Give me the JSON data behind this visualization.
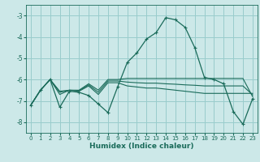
{
  "background_color": "#cce8e8",
  "grid_color": "#99cccc",
  "line_color": "#1a6b5a",
  "x_label": "Humidex (Indice chaleur)",
  "xlim": [
    -0.5,
    23.5
  ],
  "ylim": [
    -8.5,
    -2.5
  ],
  "yticks": [
    -8,
    -7,
    -6,
    -5,
    -4,
    -3
  ],
  "xticks": [
    0,
    1,
    2,
    3,
    4,
    5,
    6,
    7,
    8,
    9,
    10,
    11,
    12,
    13,
    14,
    15,
    16,
    17,
    18,
    19,
    20,
    21,
    22,
    23
  ],
  "series": [
    {
      "x": [
        0,
        1,
        2,
        3,
        4,
        5,
        6,
        7,
        8,
        9,
        10,
        11,
        12,
        13,
        14,
        15,
        16,
        17,
        18,
        19,
        20,
        21,
        22,
        23
      ],
      "y": [
        -7.2,
        -6.5,
        -6.0,
        -6.55,
        -6.5,
        -6.5,
        -6.2,
        -6.5,
        -6.0,
        -6.0,
        -5.95,
        -5.95,
        -5.95,
        -5.95,
        -5.95,
        -5.95,
        -5.95,
        -5.95,
        -5.95,
        -5.95,
        -5.95,
        -5.95,
        -5.95,
        -6.8
      ],
      "marker": false
    },
    {
      "x": [
        0,
        1,
        2,
        3,
        4,
        5,
        6,
        7,
        8,
        9,
        10,
        11,
        12,
        13,
        14,
        15,
        16,
        17,
        18,
        19,
        20,
        21,
        22,
        23
      ],
      "y": [
        -7.2,
        -6.5,
        -6.0,
        -6.7,
        -6.5,
        -6.55,
        -6.3,
        -6.7,
        -6.15,
        -6.15,
        -6.3,
        -6.35,
        -6.4,
        -6.4,
        -6.45,
        -6.5,
        -6.55,
        -6.6,
        -6.65,
        -6.65,
        -6.65,
        -6.65,
        -6.65,
        -6.65
      ],
      "marker": false
    },
    {
      "x": [
        0,
        1,
        2,
        3,
        4,
        5,
        6,
        7,
        8,
        9,
        10,
        11,
        12,
        13,
        14,
        15,
        16,
        17,
        18,
        19,
        20,
        21,
        22,
        23
      ],
      "y": [
        -7.2,
        -6.5,
        -6.0,
        -6.6,
        -6.5,
        -6.52,
        -6.25,
        -6.6,
        -6.07,
        -6.07,
        -6.12,
        -6.15,
        -6.17,
        -6.17,
        -6.2,
        -6.22,
        -6.25,
        -6.27,
        -6.3,
        -6.3,
        -6.3,
        -6.3,
        -6.3,
        -6.72
      ],
      "marker": false
    },
    {
      "x": [
        0,
        1,
        2,
        3,
        4,
        5,
        6,
        7,
        8,
        9,
        10,
        11,
        12,
        13,
        14,
        15,
        16,
        17,
        18,
        19,
        20,
        21,
        22,
        23
      ],
      "y": [
        -7.2,
        -6.5,
        -6.0,
        -7.3,
        -6.55,
        -6.6,
        -6.75,
        -7.15,
        -7.55,
        -6.35,
        -5.2,
        -4.75,
        -4.1,
        -3.8,
        -3.1,
        -3.2,
        -3.55,
        -4.5,
        -5.9,
        -6.0,
        -6.2,
        -7.5,
        -8.1,
        -6.9
      ],
      "marker": true
    }
  ]
}
